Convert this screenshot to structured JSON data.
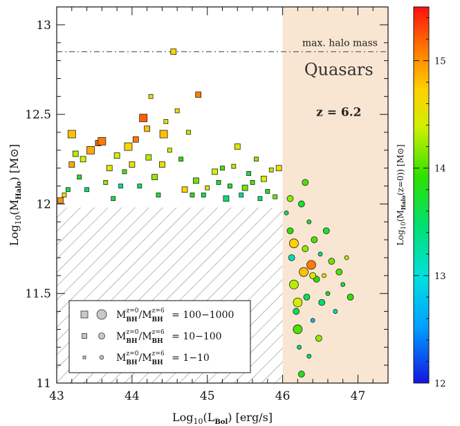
{
  "chart_data": {
    "type": "scatter",
    "title": "",
    "xlabel": "Log10(LBol) [erg/s]",
    "ylabel": "Log10(MHalo) [M⊙]",
    "colorbar_label": "Log10(MHalo(z=0)) [M⊙]",
    "xlim": [
      43.0,
      47.4
    ],
    "ylim": [
      11.0,
      13.1
    ],
    "xticks": [
      43,
      44,
      45,
      46,
      47
    ],
    "yticks": [
      11,
      11.5,
      12,
      12.5,
      13
    ],
    "colorbar": {
      "range": [
        12,
        15.5
      ],
      "ticks": [
        12,
        13,
        14,
        15
      ],
      "colormap": "rainbow (blue→cyan→green→yellow→orange→red)"
    },
    "grid": false,
    "quasar_region": {
      "xmin": 46.0,
      "xmax": 47.4,
      "fill": "#f8e6d3"
    },
    "hatched_region": {
      "xmin": 43.0,
      "xmax": 46.0,
      "ymin": 11.0,
      "ymax": 11.98
    },
    "max_halo_mass_line": {
      "y": 12.85,
      "label": "max. halo mass"
    },
    "annotations": {
      "region_label": "Quasars",
      "redshift": "z = 6.2"
    },
    "legend": {
      "placement": "bottom-left",
      "entries": [
        {
          "text_main": "M",
          "sub1": "BH",
          "sup1": "z=0",
          "sub2": "BH",
          "sup2": "z=6",
          "range": "= 100−1000",
          "size": "large"
        },
        {
          "text_main": "M",
          "sub1": "BH",
          "sup1": "z=0",
          "sub2": "BH",
          "sup2": "z=6",
          "range": "= 10−100",
          "size": "medium"
        },
        {
          "text_main": "M",
          "sub1": "BH",
          "sup1": "z=0",
          "sub2": "BH",
          "sup2": "z=6",
          "range": "= 1−10",
          "size": "small"
        }
      ]
    },
    "series": [
      {
        "marker": "square",
        "points": [
          [
            43.05,
            12.02,
            2,
            15.0
          ],
          [
            43.1,
            12.05,
            1,
            14.6
          ],
          [
            43.15,
            12.08,
            1,
            13.6
          ],
          [
            43.2,
            12.22,
            2,
            14.9
          ],
          [
            43.2,
            12.39,
            3,
            14.8
          ],
          [
            43.25,
            12.28,
            2,
            14.3
          ],
          [
            43.3,
            12.15,
            1,
            13.8
          ],
          [
            43.35,
            12.25,
            2,
            14.4
          ],
          [
            43.4,
            12.08,
            1,
            13.5
          ],
          [
            43.45,
            12.3,
            3,
            14.9
          ],
          [
            43.55,
            12.34,
            2,
            15.2
          ],
          [
            43.6,
            12.35,
            3,
            15.1
          ],
          [
            43.65,
            12.12,
            1,
            14.2
          ],
          [
            43.7,
            12.2,
            2,
            14.5
          ],
          [
            43.75,
            12.03,
            1,
            13.7
          ],
          [
            43.8,
            12.27,
            2,
            14.4
          ],
          [
            43.85,
            12.1,
            1,
            13.4
          ],
          [
            43.9,
            12.18,
            1,
            14.0
          ],
          [
            43.95,
            12.32,
            3,
            14.7
          ],
          [
            44.0,
            12.22,
            2,
            14.6
          ],
          [
            44.05,
            12.36,
            2,
            15.1
          ],
          [
            44.1,
            12.1,
            1,
            13.6
          ],
          [
            44.15,
            12.48,
            3,
            15.2
          ],
          [
            44.2,
            12.42,
            2,
            14.8
          ],
          [
            44.22,
            12.26,
            2,
            14.3
          ],
          [
            44.25,
            12.6,
            1,
            14.6
          ],
          [
            44.3,
            12.15,
            2,
            14.2
          ],
          [
            44.35,
            12.05,
            1,
            13.7
          ],
          [
            44.4,
            12.22,
            2,
            14.6
          ],
          [
            44.42,
            12.39,
            3,
            14.8
          ],
          [
            44.45,
            12.46,
            1,
            14.5
          ],
          [
            44.5,
            12.3,
            1,
            14.4
          ],
          [
            44.55,
            12.85,
            2,
            14.7
          ],
          [
            44.6,
            12.52,
            1,
            14.6
          ],
          [
            44.65,
            12.25,
            1,
            13.9
          ],
          [
            44.7,
            12.08,
            2,
            14.7
          ],
          [
            44.75,
            12.4,
            1,
            14.3
          ],
          [
            44.8,
            12.05,
            1,
            13.8
          ],
          [
            44.85,
            12.13,
            2,
            14.1
          ],
          [
            44.88,
            12.61,
            2,
            15.1
          ],
          [
            44.95,
            12.05,
            1,
            13.6
          ],
          [
            45.0,
            12.09,
            1,
            14.5
          ],
          [
            45.1,
            12.18,
            2,
            14.4
          ],
          [
            45.15,
            12.12,
            1,
            13.8
          ],
          [
            45.2,
            12.2,
            1,
            14.0
          ],
          [
            45.25,
            12.03,
            2,
            13.5
          ],
          [
            45.3,
            12.1,
            1,
            13.8
          ],
          [
            45.35,
            12.21,
            1,
            14.3
          ],
          [
            45.4,
            12.32,
            2,
            14.5
          ],
          [
            45.45,
            12.05,
            1,
            13.4
          ],
          [
            45.5,
            12.09,
            2,
            14.1
          ],
          [
            45.55,
            12.17,
            1,
            13.7
          ],
          [
            45.6,
            12.12,
            1,
            14.0
          ],
          [
            45.65,
            12.25,
            1,
            14.2
          ],
          [
            45.7,
            12.03,
            1,
            13.5
          ],
          [
            45.75,
            12.14,
            2,
            14.4
          ],
          [
            45.8,
            12.07,
            1,
            13.9
          ],
          [
            45.85,
            12.19,
            1,
            14.3
          ],
          [
            45.9,
            12.04,
            1,
            14.1
          ],
          [
            45.95,
            12.2,
            2,
            14.6
          ]
        ]
      },
      {
        "marker": "circle",
        "points": [
          [
            46.05,
            11.95,
            1,
            13.5
          ],
          [
            46.1,
            11.85,
            2,
            13.9
          ],
          [
            46.12,
            11.7,
            2,
            13.2
          ],
          [
            46.15,
            11.55,
            3,
            14.3
          ],
          [
            46.18,
            11.4,
            2,
            13.6
          ],
          [
            46.2,
            11.3,
            3,
            14.0
          ],
          [
            46.22,
            11.2,
            1,
            13.4
          ],
          [
            46.25,
            11.05,
            2,
            13.8
          ],
          [
            46.28,
            11.62,
            3,
            14.8
          ],
          [
            46.3,
            11.75,
            2,
            14.2
          ],
          [
            46.32,
            11.48,
            2,
            13.6
          ],
          [
            46.35,
            11.9,
            1,
            13.7
          ],
          [
            46.38,
            11.66,
            3,
            15.1
          ],
          [
            46.4,
            11.35,
            1,
            12.7
          ],
          [
            46.42,
            11.8,
            2,
            14.0
          ],
          [
            46.45,
            11.58,
            2,
            13.9
          ],
          [
            46.48,
            11.25,
            2,
            14.2
          ],
          [
            46.5,
            11.72,
            1,
            13.3
          ],
          [
            46.52,
            11.45,
            2,
            13.5
          ],
          [
            46.55,
            11.6,
            1,
            14.6
          ],
          [
            46.58,
            11.85,
            2,
            13.7
          ],
          [
            46.6,
            11.5,
            1,
            13.8
          ],
          [
            46.65,
            11.68,
            2,
            14.1
          ],
          [
            46.7,
            11.4,
            1,
            13.2
          ],
          [
            46.75,
            11.62,
            2,
            14.0
          ],
          [
            46.8,
            11.55,
            1,
            13.6
          ],
          [
            46.85,
            11.7,
            1,
            14.3
          ],
          [
            46.9,
            11.48,
            2,
            13.9
          ],
          [
            46.3,
            12.12,
            2,
            14.0
          ],
          [
            46.25,
            12.0,
            2,
            13.7
          ],
          [
            46.1,
            12.03,
            2,
            14.2
          ],
          [
            46.35,
            11.15,
            1,
            13.5
          ],
          [
            46.2,
            11.45,
            3,
            14.4
          ],
          [
            46.4,
            11.6,
            2,
            14.5
          ],
          [
            46.15,
            11.78,
            3,
            14.7
          ]
        ]
      }
    ]
  }
}
